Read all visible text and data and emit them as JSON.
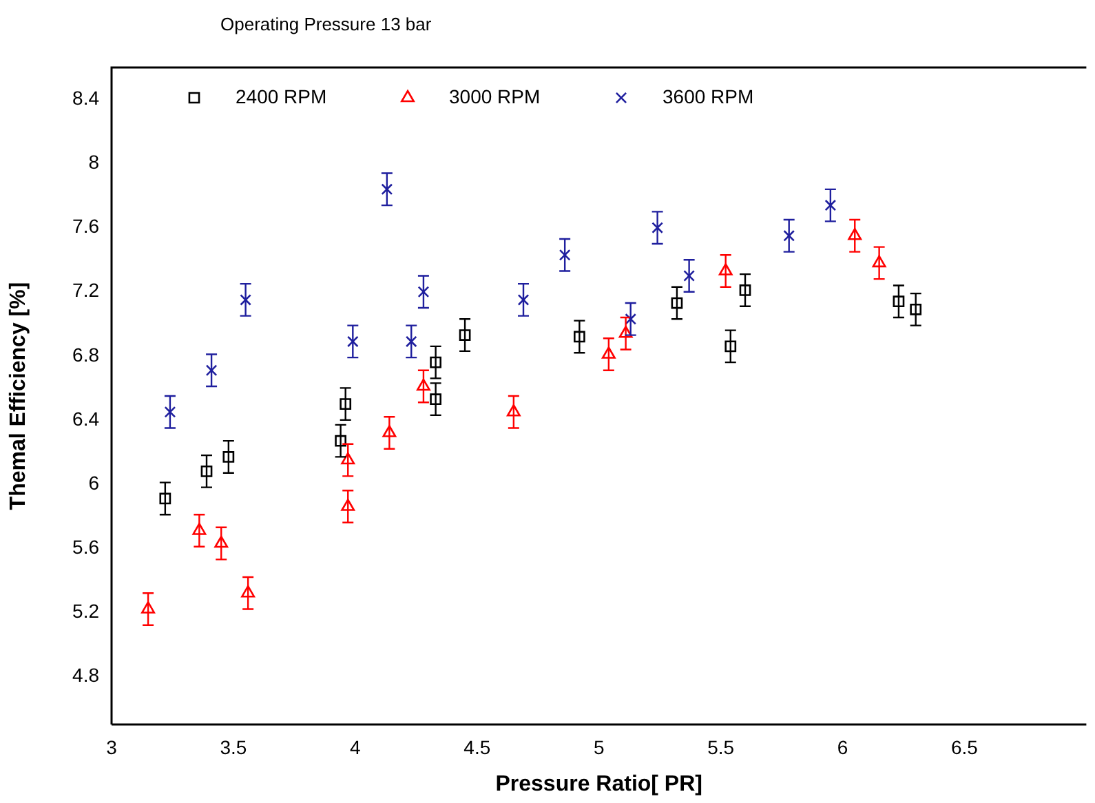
{
  "chart_data": {
    "type": "scatter",
    "title": "Operating Pressure 13 bar",
    "xlabel": "Pressure Ratio[ PR]",
    "ylabel": "Themal Efficiency [%]",
    "xlim": [
      3,
      7
    ],
    "ylim": [
      4.5,
      8.6
    ],
    "xticks": [
      3,
      3.5,
      4,
      4.5,
      5,
      5.5,
      6,
      6.5
    ],
    "yticks": [
      4.8,
      5.2,
      5.6,
      6,
      6.4,
      6.8,
      7.2,
      7.6,
      8,
      8.4
    ],
    "grid": false,
    "legend": "top left",
    "series": [
      {
        "name": "2400 RPM",
        "color": "#000000",
        "marker": "square",
        "x": [
          3.22,
          3.39,
          3.48,
          3.94,
          3.96,
          4.33,
          4.33,
          4.45,
          4.92,
          5.32,
          5.54,
          5.6,
          6.23,
          6.3
        ],
        "values": [
          5.91,
          6.08,
          6.17,
          6.27,
          6.5,
          6.53,
          6.76,
          6.93,
          6.92,
          7.13,
          6.86,
          7.21,
          7.14,
          7.09
        ],
        "errors": [
          0.1,
          0.1,
          0.1,
          0.1,
          0.1,
          0.1,
          0.1,
          0.1,
          0.1,
          0.1,
          0.1,
          0.1,
          0.1,
          0.1
        ]
      },
      {
        "name": "3000 RPM",
        "color": "#ff0000",
        "marker": "triangle",
        "x": [
          3.15,
          3.36,
          3.45,
          3.56,
          3.97,
          3.97,
          4.14,
          4.28,
          4.65,
          5.04,
          5.11,
          5.52,
          6.05,
          6.15
        ],
        "values": [
          5.22,
          5.71,
          5.63,
          5.32,
          5.86,
          6.15,
          6.32,
          6.61,
          6.45,
          6.81,
          6.94,
          7.33,
          7.55,
          7.38
        ],
        "errors": [
          0.1,
          0.1,
          0.1,
          0.1,
          0.1,
          0.1,
          0.1,
          0.1,
          0.1,
          0.1,
          0.1,
          0.1,
          0.1,
          0.1
        ]
      },
      {
        "name": "3600 RPM",
        "color": "#1f1f9e",
        "marker": "cross",
        "x": [
          3.24,
          3.41,
          3.55,
          3.99,
          4.13,
          4.23,
          4.28,
          4.69,
          4.86,
          5.13,
          5.24,
          5.37,
          5.78,
          5.95
        ],
        "values": [
          6.45,
          6.71,
          7.15,
          6.89,
          7.84,
          6.89,
          7.2,
          7.15,
          7.43,
          7.03,
          7.6,
          7.3,
          7.55,
          7.74
        ],
        "errors": [
          0.1,
          0.1,
          0.1,
          0.1,
          0.1,
          0.1,
          0.1,
          0.1,
          0.1,
          0.1,
          0.1,
          0.1,
          0.1,
          0.1
        ]
      }
    ]
  }
}
